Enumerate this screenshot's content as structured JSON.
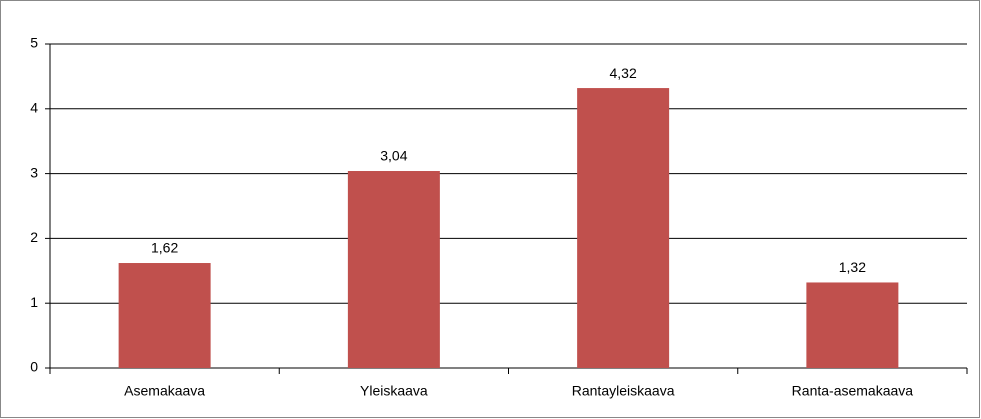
{
  "chart_data": {
    "type": "bar",
    "categories": [
      "Asemakaava",
      "Yleiskaava",
      "Rantayleiskaava",
      "Ranta-asemakaava"
    ],
    "values": [
      1.62,
      3.04,
      4.32,
      1.32
    ],
    "value_labels": [
      "1,62",
      "3,04",
      "4,32",
      "1,32"
    ],
    "color": "#c0504d",
    "ylim": [
      0,
      5
    ],
    "yticks": [
      0,
      1,
      2,
      3,
      4,
      5
    ],
    "grid": true
  }
}
